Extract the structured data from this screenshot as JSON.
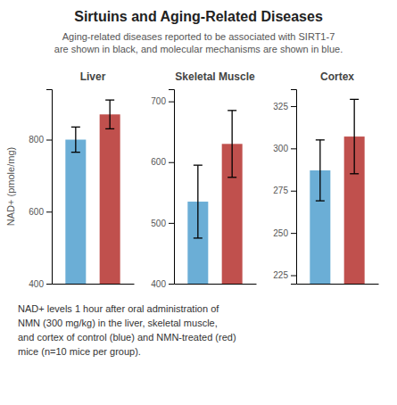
{
  "title": "Sirtuins and Aging-Related Diseases",
  "subtitle": [
    "Aging-related diseases reported to be associated with SIRT1-7",
    "are shown in black, and molecular mechanisms are shown in blue."
  ],
  "footnote": [
    "NAD+ levels 1 hour after oral administration of",
    "NMN (300 mg/kg) in the liver, skeletal muscle,",
    "and cortex of control (blue) and NMN-treated (red)",
    "mice (n=10 mice per group)."
  ],
  "chart_data": [
    {
      "type": "bar",
      "title": "Liver",
      "ylabel": "NAD+ (pmole/mg)",
      "categories": [
        null,
        null
      ],
      "values": [
        800,
        870
      ],
      "errors": [
        35,
        40
      ],
      "colors": [
        "#6baed6",
        "#c0504d"
      ],
      "ylim": [
        400,
        940
      ],
      "yticks": [
        400,
        600,
        800
      ],
      "tick_labels": "y"
    },
    {
      "type": "bar",
      "title": "Skeletal Muscle",
      "categories": [
        null,
        null
      ],
      "values": [
        535,
        630
      ],
      "errors": [
        60,
        55
      ],
      "colors": [
        "#6baed6",
        "#c0504d"
      ],
      "ylim": [
        400,
        720
      ],
      "yticks": [
        400,
        500,
        600,
        700
      ],
      "tick_labels": "y"
    },
    {
      "type": "bar",
      "title": "Cortex",
      "categories": [
        null,
        null
      ],
      "values": [
        287,
        307
      ],
      "errors": [
        18,
        22
      ],
      "colors": [
        "#6baed6",
        "#c0504d"
      ],
      "ylim": [
        220,
        335
      ],
      "yticks": [
        225,
        250,
        275,
        300,
        325
      ],
      "tick_labels": "y"
    }
  ]
}
